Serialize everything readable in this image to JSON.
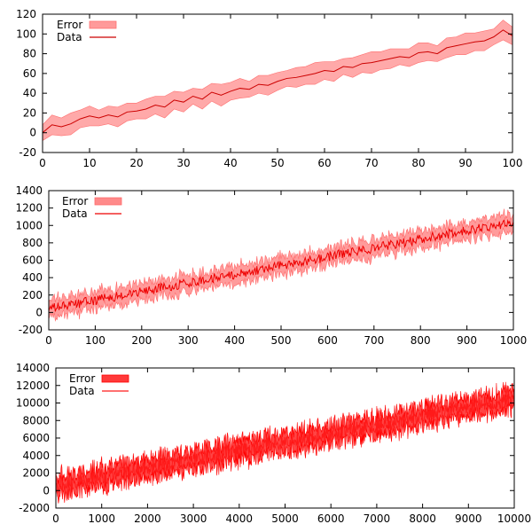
{
  "chart_data": [
    {
      "type": "area",
      "title": "",
      "xlabel": "",
      "ylabel": "",
      "xlim": [
        0,
        100
      ],
      "ylim": [
        -20,
        120
      ],
      "xticks": [
        0,
        10,
        20,
        30,
        40,
        50,
        60,
        70,
        80,
        90,
        100
      ],
      "yticks": [
        -20,
        0,
        20,
        40,
        60,
        80,
        100,
        120
      ],
      "legend_position": "top-left",
      "legend": [
        "Error",
        "Data"
      ],
      "x": [
        0,
        2,
        4,
        6,
        8,
        10,
        12,
        14,
        16,
        18,
        20,
        22,
        24,
        26,
        28,
        30,
        32,
        34,
        36,
        38,
        40,
        42,
        44,
        46,
        48,
        50,
        52,
        54,
        56,
        58,
        60,
        62,
        64,
        66,
        68,
        70,
        72,
        74,
        76,
        78,
        80,
        82,
        84,
        86,
        88,
        90,
        92,
        94,
        96,
        98,
        100
      ],
      "series": [
        {
          "name": "Data",
          "values": [
            0,
            8,
            6,
            9,
            14,
            17,
            15,
            18,
            16,
            21,
            22,
            24,
            28,
            26,
            33,
            31,
            37,
            34,
            41,
            38,
            42,
            45,
            44,
            49,
            48,
            52,
            55,
            56,
            58,
            60,
            63,
            62,
            67,
            66,
            70,
            71,
            73,
            75,
            77,
            76,
            81,
            82,
            80,
            86,
            88,
            90,
            92,
            93,
            97,
            104,
            98
          ],
          "error": [
            8,
            10,
            9,
            11,
            9,
            10,
            8,
            9,
            10,
            9,
            8,
            10,
            9,
            11,
            9,
            10,
            8,
            10,
            9,
            11,
            9,
            10,
            8,
            9,
            10,
            9,
            8,
            10,
            9,
            11,
            9,
            10,
            8,
            10,
            9,
            11,
            9,
            10,
            8,
            9,
            10,
            9,
            8,
            10,
            9,
            11,
            9,
            10,
            8,
            10,
            9
          ]
        }
      ],
      "colors": {
        "data_line": "#cc0000",
        "error_fill": "#ff9a9a",
        "error_edge": "#ff7070"
      }
    },
    {
      "type": "area",
      "title": "",
      "xlabel": "",
      "ylabel": "",
      "xlim": [
        0,
        1000
      ],
      "ylim": [
        -200,
        1400
      ],
      "xticks": [
        0,
        100,
        200,
        300,
        400,
        500,
        600,
        700,
        800,
        900,
        1000
      ],
      "yticks": [
        -200,
        0,
        200,
        400,
        600,
        800,
        1000,
        1200,
        1400
      ],
      "legend_position": "top-left",
      "legend": [
        "Error",
        "Data"
      ],
      "trend": {
        "start": 40,
        "end": 1040
      },
      "noise_amplitude": 55,
      "error_amplitude": 110,
      "sample_count": 500,
      "colors": {
        "data_line": "#ee0000",
        "error_fill": "#ff8a8a",
        "error_edge": "#ff6a6a"
      }
    },
    {
      "type": "area",
      "title": "",
      "xlabel": "",
      "ylabel": "",
      "xlim": [
        0,
        10000
      ],
      "ylim": [
        -2000,
        14000
      ],
      "xticks": [
        0,
        1000,
        2000,
        3000,
        4000,
        5000,
        6000,
        7000,
        8000,
        9000,
        10000
      ],
      "yticks": [
        -2000,
        0,
        2000,
        4000,
        6000,
        8000,
        10000,
        12000,
        14000
      ],
      "legend_position": "top-left",
      "legend": [
        "Error",
        "Data"
      ],
      "trend": {
        "start": 600,
        "end": 10400
      },
      "noise_amplitude": 900,
      "error_amplitude": 1250,
      "sample_count": 900,
      "colors": {
        "data_line": "#ff1a1a",
        "error_fill": "#ff3a3a",
        "error_edge": "#ff0000"
      }
    }
  ]
}
